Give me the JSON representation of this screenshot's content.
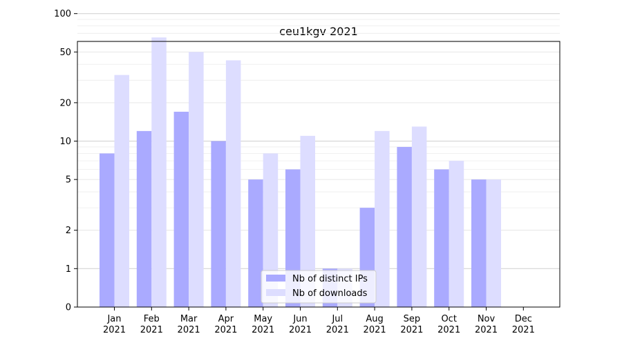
{
  "chart_data": {
    "type": "bar",
    "title": "ceu1kgv 2021",
    "xlabel": "",
    "ylabel": "",
    "y_scale": "symlog",
    "ylim": [
      0,
      120
    ],
    "y_ticks": [
      0,
      1,
      2,
      5,
      10,
      20,
      50,
      100
    ],
    "categories": [
      "Jan 2021",
      "Feb 2021",
      "Mar 2021",
      "Apr 2021",
      "May 2021",
      "Jun 2021",
      "Jul 2021",
      "Aug 2021",
      "Sep 2021",
      "Oct 2021",
      "Nov 2021",
      "Dec 2021"
    ],
    "category_labels": [
      {
        "month": "Jan",
        "year": "2021"
      },
      {
        "month": "Feb",
        "year": "2021"
      },
      {
        "month": "Mar",
        "year": "2021"
      },
      {
        "month": "Apr",
        "year": "2021"
      },
      {
        "month": "May",
        "year": "2021"
      },
      {
        "month": "Jun",
        "year": "2021"
      },
      {
        "month": "Jul",
        "year": "2021"
      },
      {
        "month": "Aug",
        "year": "2021"
      },
      {
        "month": "Sep",
        "year": "2021"
      },
      {
        "month": "Oct",
        "year": "2021"
      },
      {
        "month": "Nov",
        "year": "2021"
      },
      {
        "month": "Dec",
        "year": "2021"
      }
    ],
    "series": [
      {
        "name": "Nb of distinct IPs",
        "color": "#aaaaff",
        "values": [
          8,
          12,
          17,
          10,
          5,
          6,
          1,
          3,
          9,
          6,
          5,
          0
        ]
      },
      {
        "name": "Nb of downloads",
        "color": "#ddddff",
        "values": [
          33,
          65,
          50,
          43,
          8,
          11,
          1,
          12,
          13,
          7,
          5,
          0
        ]
      }
    ],
    "grid": "y",
    "legend_position": "bottom-center"
  }
}
